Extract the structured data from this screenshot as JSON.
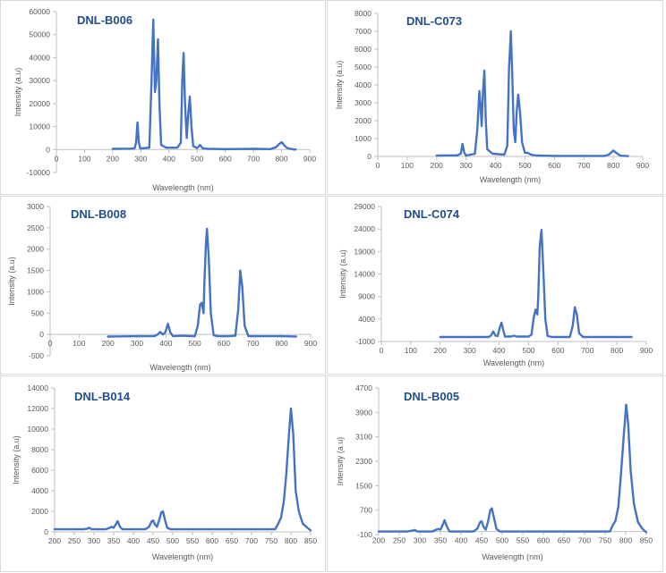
{
  "figure": {
    "background": "#ffffff",
    "panel_border": "#d9d9d9",
    "line_color": "#4472c4",
    "title_color": "#1f4e8c"
  },
  "chart_data": [
    {
      "type": "line",
      "title": "DNL-B006",
      "xlabel": "Wavelength (nm)",
      "ylabel": "Intensity (a.u)",
      "xlim": [
        0,
        900
      ],
      "ylim": [
        -10000,
        60000
      ],
      "xticks": [
        0,
        100,
        200,
        300,
        400,
        500,
        600,
        700,
        800,
        900
      ],
      "yticks": [
        -10000,
        0,
        10000,
        20000,
        30000,
        40000,
        50000,
        60000
      ],
      "grid": false,
      "series": [
        {
          "name": "DNL-B006",
          "x": [
            200,
            260,
            278,
            283,
            288,
            293,
            298,
            330,
            338,
            344,
            350,
            355,
            361,
            366,
            372,
            390,
            430,
            442,
            447,
            452,
            457,
            463,
            468,
            474,
            480,
            486,
            500,
            510,
            520,
            540,
            600,
            700,
            760,
            780,
            795,
            801,
            808,
            820,
            840,
            850
          ],
          "y": [
            300,
            400,
            500,
            3000,
            11800,
            3000,
            500,
            800,
            30000,
            56500,
            25000,
            30000,
            48000,
            20000,
            2000,
            800,
            800,
            3000,
            30000,
            42000,
            20000,
            5000,
            15000,
            23000,
            10000,
            1500,
            600,
            2000,
            500,
            300,
            200,
            300,
            200,
            1000,
            2800,
            3200,
            2000,
            600,
            100,
            0
          ]
        }
      ]
    },
    {
      "type": "line",
      "title": "DNL-C073",
      "xlabel": "Wavelength (nm)",
      "ylabel": "Intensity (a.u)",
      "xlim": [
        0,
        900
      ],
      "ylim": [
        0,
        8000
      ],
      "xticks": [
        0,
        100,
        200,
        300,
        400,
        500,
        600,
        700,
        800,
        900
      ],
      "yticks": [
        0,
        1000,
        2000,
        3000,
        4000,
        5000,
        6000,
        7000,
        8000
      ],
      "grid": false,
      "series": [
        {
          "name": "DNL-C073",
          "x": [
            200,
            270,
            282,
            288,
            294,
            300,
            330,
            338,
            345,
            350,
            353,
            357,
            362,
            367,
            372,
            390,
            430,
            440,
            446,
            452,
            457,
            462,
            467,
            472,
            477,
            483,
            490,
            500,
            510,
            520,
            540,
            600,
            700,
            770,
            785,
            800,
            810,
            825,
            850
          ],
          "y": [
            50,
            60,
            150,
            700,
            200,
            50,
            150,
            1500,
            3650,
            2600,
            1700,
            3500,
            4800,
            2000,
            400,
            150,
            100,
            600,
            5000,
            7000,
            4500,
            1500,
            800,
            2500,
            3450,
            2500,
            800,
            200,
            200,
            100,
            50,
            30,
            30,
            30,
            100,
            330,
            200,
            40,
            20
          ]
        }
      ]
    },
    {
      "type": "line",
      "title": "DNL-B008",
      "xlabel": "Wavelength (nm)",
      "ylabel": "Intensity (a.u)",
      "xlim": [
        0,
        900
      ],
      "ylim": [
        -500,
        3000
      ],
      "xticks": [
        0,
        100,
        200,
        300,
        400,
        500,
        600,
        700,
        800,
        900
      ],
      "yticks": [
        -500,
        0,
        500,
        1000,
        1500,
        2000,
        2500,
        3000
      ],
      "grid": false,
      "series": [
        {
          "name": "DNL-B008",
          "x": [
            200,
            300,
            360,
            372,
            380,
            390,
            398,
            407,
            415,
            425,
            450,
            500,
            510,
            518,
            524,
            530,
            533,
            538,
            542,
            548,
            555,
            565,
            580,
            620,
            640,
            650,
            657,
            664,
            672,
            685,
            720,
            800,
            850
          ],
          "y": [
            -50,
            -40,
            -40,
            0,
            60,
            0,
            50,
            250,
            50,
            -40,
            -30,
            -40,
            200,
            700,
            740,
            500,
            1200,
            2100,
            2480,
            1800,
            500,
            -20,
            -40,
            -40,
            -30,
            600,
            1500,
            1100,
            200,
            -40,
            -40,
            -40,
            -50
          ]
        }
      ]
    },
    {
      "type": "line",
      "title": "DNL-C074",
      "xlabel": "Wavelength (nm)",
      "ylabel": "Intensity (a.u)",
      "xlim": [
        0,
        900
      ],
      "ylim": [
        -1000,
        29000
      ],
      "xticks": [
        0,
        100,
        200,
        300,
        400,
        500,
        600,
        700,
        800,
        900
      ],
      "yticks": [
        -1000,
        4000,
        9000,
        14000,
        19000,
        24000,
        29000
      ],
      "grid": false,
      "series": [
        {
          "name": "DNL-C074",
          "x": [
            200,
            300,
            365,
            372,
            380,
            388,
            395,
            402,
            408,
            414,
            420,
            440,
            450,
            460,
            500,
            510,
            518,
            524,
            530,
            533,
            538,
            544,
            550,
            557,
            565,
            580,
            620,
            640,
            650,
            657,
            664,
            672,
            685,
            720,
            800,
            850
          ],
          "y": [
            0,
            0,
            0,
            300,
            1200,
            300,
            200,
            2000,
            3200,
            1500,
            100,
            100,
            300,
            100,
            100,
            500,
            4500,
            6100,
            5000,
            9000,
            20000,
            23800,
            15000,
            4000,
            200,
            0,
            0,
            0,
            2500,
            6600,
            5000,
            800,
            0,
            0,
            0,
            0
          ]
        }
      ]
    },
    {
      "type": "line",
      "title": "DNL-B014",
      "xlabel": "Wavelength (nm)",
      "ylabel": "Intensity (a.u)",
      "xlim": [
        200,
        850
      ],
      "ylim": [
        0,
        14000
      ],
      "xticks": [
        200,
        250,
        300,
        350,
        400,
        450,
        500,
        550,
        600,
        650,
        700,
        750,
        800,
        850
      ],
      "yticks": [
        0,
        2000,
        4000,
        6000,
        8000,
        10000,
        12000,
        14000
      ],
      "grid": false,
      "series": [
        {
          "name": "DNL-B014",
          "x": [
            200,
            270,
            282,
            288,
            294,
            330,
            340,
            345,
            350,
            355,
            360,
            366,
            372,
            380,
            430,
            440,
            446,
            450,
            455,
            460,
            466,
            471,
            475,
            480,
            486,
            495,
            550,
            700,
            760,
            768,
            775,
            782,
            788,
            795,
            800,
            806,
            812,
            820,
            830,
            845,
            850
          ],
          "y": [
            250,
            250,
            300,
            400,
            250,
            250,
            400,
            500,
            400,
            700,
            1050,
            500,
            250,
            250,
            250,
            500,
            1000,
            1100,
            700,
            500,
            1200,
            1900,
            2000,
            1200,
            400,
            250,
            250,
            250,
            250,
            800,
            1400,
            3000,
            5500,
            9500,
            12000,
            9500,
            4000,
            2000,
            800,
            300,
            150
          ]
        }
      ]
    },
    {
      "type": "line",
      "title": "DNL-B005",
      "xlabel": "Wavelength (nm)",
      "ylabel": "Intensity (a.u)",
      "xlim": [
        200,
        850
      ],
      "ylim": [
        -100,
        4700
      ],
      "xticks": [
        200,
        250,
        300,
        350,
        400,
        450,
        500,
        550,
        600,
        650,
        700,
        750,
        800,
        850
      ],
      "yticks": [
        -100,
        700,
        1500,
        2300,
        3100,
        3900,
        4700
      ],
      "grid": false,
      "series": [
        {
          "name": "DNL-B005",
          "x": [
            200,
            270,
            282,
            288,
            294,
            330,
            340,
            345,
            350,
            355,
            360,
            366,
            372,
            380,
            430,
            440,
            446,
            450,
            455,
            460,
            466,
            471,
            475,
            480,
            486,
            495,
            550,
            700,
            762,
            768,
            775,
            782,
            788,
            795,
            801,
            806,
            812,
            820,
            830,
            840,
            845,
            850
          ],
          "y": [
            0,
            0,
            30,
            50,
            0,
            0,
            60,
            80,
            60,
            200,
            370,
            150,
            0,
            0,
            0,
            100,
            300,
            340,
            150,
            60,
            350,
            700,
            760,
            450,
            80,
            0,
            0,
            0,
            0,
            200,
            350,
            800,
            1800,
            3100,
            4150,
            3500,
            2000,
            900,
            300,
            100,
            30,
            -20
          ]
        }
      ]
    }
  ],
  "panels": [
    {
      "title": "DNL-B006",
      "xlabel": "Wavelength (nm)",
      "ylabel": "Intensity (a.u)",
      "yticks": [
        "-10000",
        "0",
        "10000",
        "20000",
        "30000",
        "40000",
        "50000",
        "60000"
      ],
      "xticks": [
        "0",
        "100",
        "200",
        "300",
        "400",
        "500",
        "600",
        "700",
        "800",
        "900"
      ]
    },
    {
      "title": "DNL-C073",
      "xlabel": "Wavelength (nm)",
      "ylabel": "Intensity (a.u)",
      "yticks": [
        "0",
        "1000",
        "2000",
        "3000",
        "4000",
        "5000",
        "6000",
        "7000",
        "8000"
      ],
      "xticks": [
        "0",
        "100",
        "200",
        "300",
        "400",
        "500",
        "600",
        "700",
        "800",
        "900"
      ]
    },
    {
      "title": "DNL-B008",
      "xlabel": "Wavelength (nm)",
      "ylabel": "Intensity (a.u)",
      "yticks": [
        "-500",
        "0",
        "500",
        "1000",
        "1500",
        "2000",
        "2500",
        "3000"
      ],
      "xticks": [
        "0",
        "100",
        "200",
        "300",
        "400",
        "500",
        "600",
        "700",
        "800",
        "900"
      ]
    },
    {
      "title": "DNL-C074",
      "xlabel": "Wavelength (nm)",
      "ylabel": "Intensity (a.u)",
      "yticks": [
        "-1000",
        "4000",
        "9000",
        "14000",
        "19000",
        "24000",
        "29000"
      ],
      "xticks": [
        "0",
        "100",
        "200",
        "300",
        "400",
        "500",
        "600",
        "700",
        "800",
        "900"
      ]
    },
    {
      "title": "DNL-B014",
      "xlabel": "Wavelength (nm)",
      "ylabel": "Intensity (a.u)",
      "yticks": [
        "0",
        "2000",
        "4000",
        "6000",
        "8000",
        "10000",
        "12000",
        "14000"
      ],
      "xticks": [
        "200",
        "250",
        "300",
        "350",
        "400",
        "450",
        "500",
        "550",
        "600",
        "650",
        "700",
        "750",
        "800",
        "850"
      ]
    },
    {
      "title": "DNL-B005",
      "xlabel": "Wavelength (nm)",
      "ylabel": "Intensity (a.u)",
      "yticks": [
        "-100",
        "700",
        "1500",
        "2300",
        "3100",
        "3900",
        "4700"
      ],
      "xticks": [
        "200",
        "250",
        "300",
        "350",
        "400",
        "450",
        "500",
        "550",
        "600",
        "650",
        "700",
        "750",
        "800",
        "850"
      ]
    }
  ]
}
